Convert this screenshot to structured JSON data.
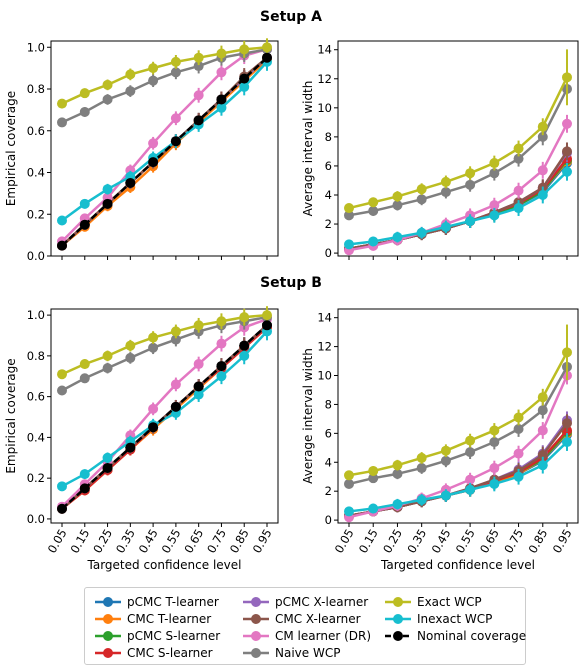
{
  "figure": {
    "panel_titles": [
      "Setup A",
      "Setup B"
    ]
  },
  "legend": {
    "items": [
      {
        "label": "pCMC T-learner",
        "color": "#1f77b4"
      },
      {
        "label": "CMC T-learner",
        "color": "#ff7f0e"
      },
      {
        "label": "pCMC S-learner",
        "color": "#2ca02c"
      },
      {
        "label": "CMC S-learner",
        "color": "#d62728"
      },
      {
        "label": "pCMC X-learner",
        "color": "#9467bd"
      },
      {
        "label": "CMC X-learner",
        "color": "#8c564b"
      },
      {
        "label": "CM learner (DR)",
        "color": "#e377c2"
      },
      {
        "label": "Naive WCP",
        "color": "#7f7f7f"
      },
      {
        "label": "Exact WCP",
        "color": "#bcbd22"
      },
      {
        "label": "Inexact WCP",
        "color": "#17becf"
      },
      {
        "label": "Nominal coverage",
        "color": "#000000"
      }
    ]
  },
  "chart_data": [
    {
      "type": "line",
      "title": "Setup A",
      "xlabel": "",
      "ylabel": "Empirical coverage",
      "x_ticks": [
        "0.05",
        "0.15",
        "0.25",
        "0.35",
        "0.45",
        "0.55",
        "0.65",
        "0.75",
        "0.85",
        "0.95"
      ],
      "y_ticks": [
        "0.0",
        "0.2",
        "0.4",
        "0.6",
        "0.8",
        "1.0"
      ],
      "ylim": [
        0,
        1.03
      ],
      "series": [
        {
          "name": "pCMC T-learner",
          "values": [
            0.05,
            0.15,
            0.25,
            0.35,
            0.45,
            0.55,
            0.65,
            0.75,
            0.85,
            0.95
          ]
        },
        {
          "name": "CMC T-learner",
          "values": [
            0.05,
            0.14,
            0.24,
            0.33,
            0.43,
            0.54,
            0.64,
            0.74,
            0.84,
            0.94
          ]
        },
        {
          "name": "pCMC S-learner",
          "values": [
            0.05,
            0.15,
            0.25,
            0.35,
            0.45,
            0.55,
            0.65,
            0.75,
            0.85,
            0.95
          ]
        },
        {
          "name": "CMC S-learner",
          "values": [
            0.05,
            0.15,
            0.25,
            0.35,
            0.45,
            0.55,
            0.65,
            0.75,
            0.85,
            0.95
          ]
        },
        {
          "name": "pCMC X-learner",
          "values": [
            0.05,
            0.15,
            0.25,
            0.35,
            0.45,
            0.55,
            0.65,
            0.75,
            0.85,
            0.95
          ]
        },
        {
          "name": "CMC X-learner",
          "values": [
            0.05,
            0.15,
            0.25,
            0.35,
            0.45,
            0.55,
            0.65,
            0.75,
            0.86,
            0.95
          ]
        },
        {
          "name": "CM learner (DR)",
          "values": [
            0.07,
            0.18,
            0.28,
            0.41,
            0.54,
            0.66,
            0.77,
            0.88,
            0.96,
            0.99
          ]
        },
        {
          "name": "Naive WCP",
          "values": [
            0.64,
            0.69,
            0.75,
            0.79,
            0.84,
            0.88,
            0.91,
            0.95,
            0.97,
            0.99
          ]
        },
        {
          "name": "Exact WCP",
          "values": [
            0.73,
            0.78,
            0.82,
            0.87,
            0.9,
            0.93,
            0.95,
            0.97,
            0.99,
            1.0
          ]
        },
        {
          "name": "Inexact WCP",
          "values": [
            0.17,
            0.25,
            0.32,
            0.38,
            0.47,
            0.55,
            0.63,
            0.71,
            0.81,
            0.93
          ]
        },
        {
          "name": "Nominal coverage",
          "values": [
            0.05,
            0.15,
            0.25,
            0.35,
            0.45,
            0.55,
            0.65,
            0.75,
            0.85,
            0.95
          ]
        }
      ]
    },
    {
      "type": "line",
      "title": "",
      "xlabel": "",
      "ylabel": "Average interval width",
      "x_ticks": [
        "0.05",
        "0.15",
        "0.25",
        "0.35",
        "0.45",
        "0.55",
        "0.65",
        "0.75",
        "0.85",
        "0.95"
      ],
      "y_ticks": [
        "0",
        "2",
        "4",
        "6",
        "8",
        "10",
        "12",
        "14"
      ],
      "ylim": [
        -0.2,
        14.6
      ],
      "series": [
        {
          "name": "pCMC T-learner",
          "values": [
            0.3,
            0.6,
            0.9,
            1.3,
            1.7,
            2.2,
            2.7,
            3.3,
            4.2,
            6.2
          ]
        },
        {
          "name": "CMC T-learner",
          "values": [
            0.3,
            0.6,
            0.9,
            1.3,
            1.7,
            2.2,
            2.7,
            3.3,
            4.3,
            6.3
          ]
        },
        {
          "name": "pCMC S-learner",
          "values": [
            0.3,
            0.6,
            0.9,
            1.3,
            1.7,
            2.2,
            2.7,
            3.3,
            4.3,
            6.4
          ]
        },
        {
          "name": "CMC S-learner",
          "values": [
            0.3,
            0.6,
            0.9,
            1.3,
            1.7,
            2.2,
            2.8,
            3.4,
            4.4,
            6.5
          ]
        },
        {
          "name": "pCMC X-learner",
          "values": [
            0.3,
            0.6,
            0.9,
            1.3,
            1.7,
            2.2,
            2.8,
            3.5,
            4.5,
            6.9
          ]
        },
        {
          "name": "CMC X-learner",
          "values": [
            0.3,
            0.6,
            0.9,
            1.3,
            1.7,
            2.2,
            2.8,
            3.5,
            4.5,
            7.0
          ]
        },
        {
          "name": "CM learner (DR)",
          "values": [
            0.2,
            0.5,
            0.9,
            1.4,
            2.0,
            2.6,
            3.3,
            4.3,
            5.7,
            8.9
          ]
        },
        {
          "name": "Naive WCP",
          "values": [
            2.6,
            2.9,
            3.3,
            3.7,
            4.2,
            4.7,
            5.5,
            6.5,
            8.0,
            11.3
          ]
        },
        {
          "name": "Exact WCP",
          "values": [
            3.1,
            3.5,
            3.9,
            4.4,
            4.9,
            5.5,
            6.2,
            7.2,
            8.7,
            12.1
          ]
        },
        {
          "name": "Inexact WCP",
          "values": [
            0.6,
            0.8,
            1.1,
            1.4,
            1.8,
            2.2,
            2.6,
            3.1,
            4.0,
            5.6
          ]
        }
      ]
    },
    {
      "type": "line",
      "title": "Setup B",
      "xlabel": "Targeted confidence level",
      "ylabel": "Empirical coverage",
      "x_ticks": [
        "0.05",
        "0.15",
        "0.25",
        "0.35",
        "0.45",
        "0.55",
        "0.65",
        "0.75",
        "0.85",
        "0.95"
      ],
      "y_ticks": [
        "0.0",
        "0.2",
        "0.4",
        "0.6",
        "0.8",
        "1.0"
      ],
      "ylim": [
        -0.02,
        1.03
      ],
      "series": [
        {
          "name": "pCMC T-learner",
          "values": [
            0.05,
            0.15,
            0.25,
            0.35,
            0.45,
            0.55,
            0.65,
            0.75,
            0.85,
            0.95
          ]
        },
        {
          "name": "CMC T-learner",
          "values": [
            0.05,
            0.14,
            0.24,
            0.34,
            0.44,
            0.54,
            0.64,
            0.74,
            0.84,
            0.94
          ]
        },
        {
          "name": "pCMC S-learner",
          "values": [
            0.05,
            0.15,
            0.25,
            0.35,
            0.45,
            0.55,
            0.65,
            0.75,
            0.85,
            0.95
          ]
        },
        {
          "name": "CMC S-learner",
          "values": [
            0.05,
            0.14,
            0.24,
            0.34,
            0.45,
            0.55,
            0.65,
            0.74,
            0.84,
            0.94
          ]
        },
        {
          "name": "pCMC X-learner",
          "values": [
            0.05,
            0.15,
            0.25,
            0.35,
            0.45,
            0.55,
            0.65,
            0.75,
            0.85,
            0.95
          ]
        },
        {
          "name": "CMC X-learner",
          "values": [
            0.05,
            0.15,
            0.25,
            0.35,
            0.45,
            0.55,
            0.65,
            0.75,
            0.85,
            0.95
          ]
        },
        {
          "name": "CM learner (DR)",
          "values": [
            0.06,
            0.17,
            0.28,
            0.41,
            0.54,
            0.66,
            0.76,
            0.86,
            0.94,
            0.98
          ]
        },
        {
          "name": "Naive WCP",
          "values": [
            0.63,
            0.69,
            0.74,
            0.79,
            0.84,
            0.88,
            0.92,
            0.95,
            0.97,
            0.99
          ]
        },
        {
          "name": "Exact WCP",
          "values": [
            0.71,
            0.76,
            0.8,
            0.85,
            0.89,
            0.92,
            0.95,
            0.97,
            0.99,
            1.0
          ]
        },
        {
          "name": "Inexact WCP",
          "values": [
            0.16,
            0.22,
            0.3,
            0.38,
            0.46,
            0.52,
            0.61,
            0.7,
            0.8,
            0.92
          ]
        },
        {
          "name": "Nominal coverage",
          "values": [
            0.05,
            0.15,
            0.25,
            0.35,
            0.45,
            0.55,
            0.65,
            0.75,
            0.85,
            0.95
          ]
        }
      ]
    },
    {
      "type": "line",
      "title": "",
      "xlabel": "Targeted confidence level",
      "ylabel": "Average interval width",
      "x_ticks": [
        "0.05",
        "0.15",
        "0.25",
        "0.35",
        "0.45",
        "0.55",
        "0.65",
        "0.75",
        "0.85",
        "0.95"
      ],
      "y_ticks": [
        "0",
        "2",
        "4",
        "6",
        "8",
        "10",
        "12",
        "14"
      ],
      "ylim": [
        -0.2,
        14.6
      ],
      "series": [
        {
          "name": "pCMC T-learner",
          "values": [
            0.3,
            0.6,
            0.9,
            1.3,
            1.7,
            2.1,
            2.6,
            3.2,
            4.1,
            5.9
          ]
        },
        {
          "name": "CMC T-learner",
          "values": [
            0.3,
            0.6,
            0.9,
            1.3,
            1.7,
            2.1,
            2.6,
            3.2,
            4.2,
            6.0
          ]
        },
        {
          "name": "pCMC S-learner",
          "values": [
            0.3,
            0.6,
            0.9,
            1.3,
            1.7,
            2.1,
            2.7,
            3.3,
            4.2,
            6.1
          ]
        },
        {
          "name": "CMC S-learner",
          "values": [
            0.3,
            0.6,
            0.9,
            1.3,
            1.7,
            2.1,
            2.7,
            3.3,
            4.3,
            6.2
          ]
        },
        {
          "name": "pCMC X-learner",
          "values": [
            0.3,
            0.6,
            0.9,
            1.3,
            1.7,
            2.2,
            2.8,
            3.5,
            4.6,
            6.9
          ]
        },
        {
          "name": "CMC X-learner",
          "values": [
            0.3,
            0.6,
            0.9,
            1.3,
            1.7,
            2.2,
            2.8,
            3.4,
            4.5,
            6.7
          ]
        },
        {
          "name": "CM learner (DR)",
          "values": [
            0.2,
            0.6,
            1.0,
            1.5,
            2.1,
            2.8,
            3.6,
            4.6,
            6.2,
            10.0
          ]
        },
        {
          "name": "Naive WCP",
          "values": [
            2.5,
            2.9,
            3.2,
            3.6,
            4.1,
            4.7,
            5.4,
            6.3,
            7.6,
            10.6
          ]
        },
        {
          "name": "Exact WCP",
          "values": [
            3.1,
            3.4,
            3.8,
            4.3,
            4.8,
            5.5,
            6.2,
            7.1,
            8.5,
            11.6
          ]
        },
        {
          "name": "Inexact WCP",
          "values": [
            0.6,
            0.8,
            1.1,
            1.4,
            1.7,
            2.1,
            2.5,
            3.0,
            3.8,
            5.4
          ]
        }
      ]
    }
  ]
}
